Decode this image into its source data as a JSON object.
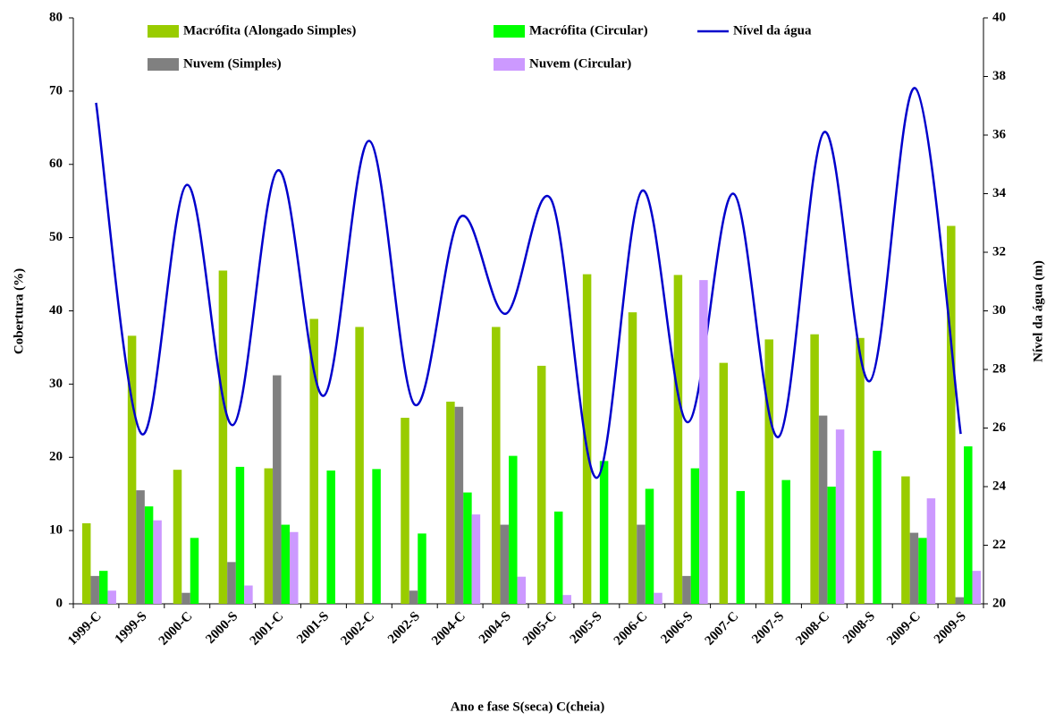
{
  "chart_data": {
    "type": "bar",
    "x_label": "Ano e fase S(seca) C(cheia)",
    "y_label": "Cobertura (%)",
    "y2_label": "Nível da água (m)",
    "categories": [
      "1999-C",
      "1999-S",
      "2000-C",
      "2000-S",
      "2001-C",
      "2001-S",
      "2002-C",
      "2002-S",
      "2004-C",
      "2004-S",
      "2005-C",
      "2005-S",
      "2006-C",
      "2006-S",
      "2007-C",
      "2007-S",
      "2008-C",
      "2008-S",
      "2009-C",
      "2009-S"
    ],
    "series": [
      {
        "name": "Macrófita (Alongado Simples)",
        "type": "bar",
        "color": "#99cc00",
        "values": [
          11,
          36.6,
          18.3,
          45.5,
          18.5,
          38.9,
          37.8,
          25.4,
          27.6,
          37.8,
          32.5,
          45,
          39.8,
          44.9,
          32.9,
          36.1,
          36.8,
          36.3,
          17.4,
          51.6
        ]
      },
      {
        "name": "Macrófita (Circular)",
        "type": "bar",
        "color": "#00ff00",
        "values": [
          4.5,
          13.3,
          9,
          18.7,
          10.8,
          18.2,
          18.4,
          9.6,
          15.2,
          20.2,
          12.6,
          19.5,
          15.7,
          18.5,
          15.4,
          16.9,
          16,
          20.9,
          9,
          21.5
        ]
      },
      {
        "name": "Nível da água",
        "type": "line",
        "axis": "y2",
        "color": "#0000cc",
        "values": [
          37.1,
          25.8,
          34.3,
          26.1,
          34.8,
          27.1,
          35.8,
          26.8,
          33.2,
          29.9,
          33.8,
          24.3,
          34.1,
          26.2,
          34.0,
          25.7,
          36.1,
          27.6,
          37.6,
          25.8
        ]
      },
      {
        "name": "Nuvem (Simples)",
        "type": "bar",
        "color": "#808080",
        "values": [
          3.8,
          15.5,
          1.5,
          5.7,
          31.2,
          0,
          0,
          1.8,
          26.9,
          10.8,
          0,
          0,
          10.8,
          3.8,
          0,
          0,
          25.7,
          0,
          9.7,
          0.9
        ]
      },
      {
        "name": "Nuvem (Circular)",
        "type": "bar",
        "color": "#cc99ff",
        "values": [
          1.8,
          11.4,
          0,
          2.5,
          9.8,
          0,
          0,
          0,
          12.2,
          3.7,
          1.2,
          0,
          1.5,
          44.2,
          0,
          0,
          23.8,
          0,
          14.4,
          4.5
        ]
      }
    ],
    "ylim": [
      0,
      80
    ],
    "yticks": [
      0,
      10,
      20,
      30,
      40,
      50,
      60,
      70,
      80
    ],
    "y2lim": [
      20,
      40
    ],
    "y2ticks": [
      20,
      22,
      24,
      26,
      28,
      30,
      32,
      34,
      36,
      38,
      40
    ],
    "grid": false
  }
}
